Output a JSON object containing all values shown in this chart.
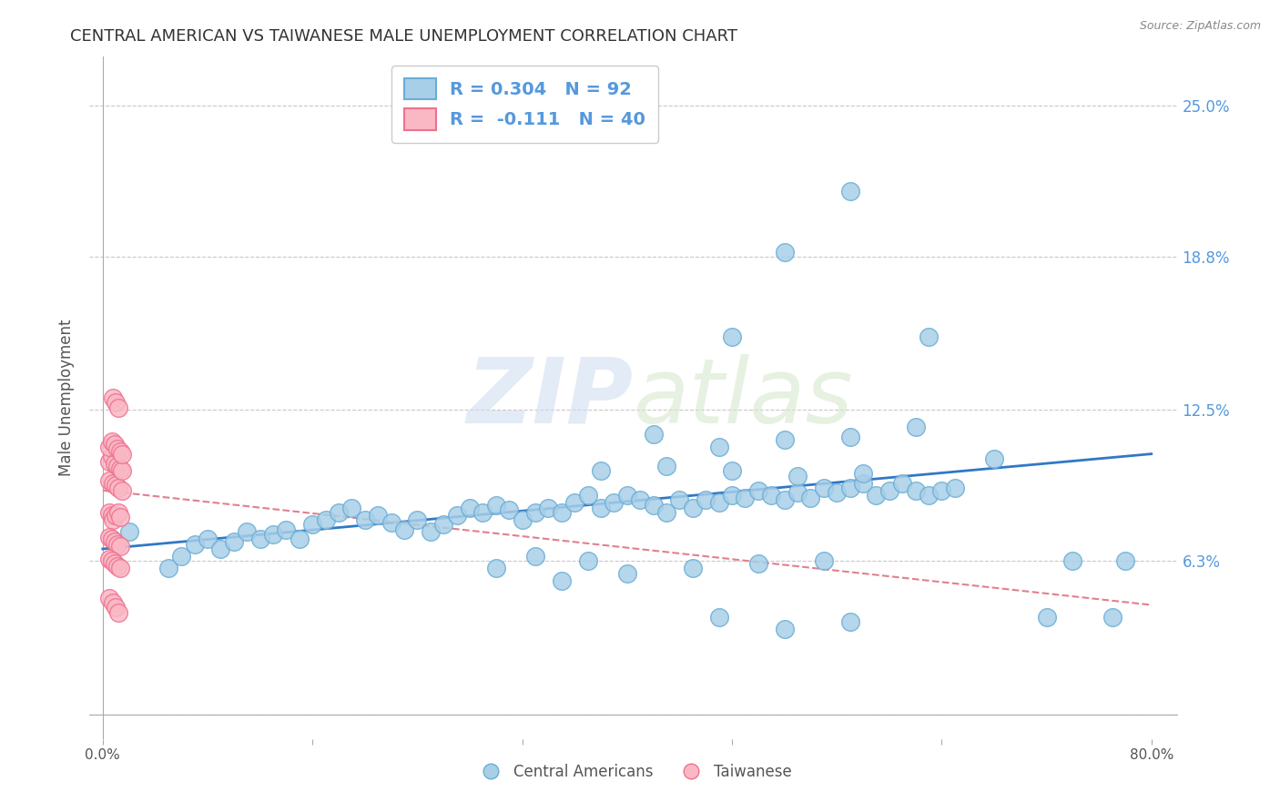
{
  "title": "CENTRAL AMERICAN VS TAIWANESE MALE UNEMPLOYMENT CORRELATION CHART",
  "source_text": "Source: ZipAtlas.com",
  "ylabel": "Male Unemployment",
  "xlim": [
    -0.01,
    0.82
  ],
  "ylim": [
    -0.01,
    0.27
  ],
  "yticks": [
    0.0,
    0.063,
    0.125,
    0.188,
    0.25
  ],
  "ytick_labels": [
    "",
    "6.3%",
    "12.5%",
    "18.8%",
    "25.0%"
  ],
  "xticks": [
    0.0,
    0.16,
    0.32,
    0.48,
    0.64,
    0.8
  ],
  "xtick_labels": [
    "0.0%",
    "",
    "",
    "",
    "",
    "80.0%"
  ],
  "watermark_zip": "ZIP",
  "watermark_atlas": "atlas",
  "legend_blue_label": "R = 0.304   N = 92",
  "legend_pink_label": "R =  -0.111   N = 40",
  "legend_ca_label": "Central Americans",
  "legend_tw_label": "Taiwanese",
  "blue_color": "#a8cfe8",
  "blue_edge_color": "#6aadd5",
  "pink_color": "#f9b8c4",
  "pink_edge_color": "#f07090",
  "trendline_blue_color": "#3178c6",
  "trendline_pink_color": "#e08090",
  "blue_scatter_x": [
    0.02,
    0.05,
    0.06,
    0.07,
    0.08,
    0.09,
    0.1,
    0.11,
    0.12,
    0.13,
    0.14,
    0.15,
    0.16,
    0.17,
    0.18,
    0.19,
    0.2,
    0.21,
    0.22,
    0.23,
    0.24,
    0.25,
    0.26,
    0.27,
    0.28,
    0.29,
    0.3,
    0.31,
    0.32,
    0.33,
    0.34,
    0.35,
    0.36,
    0.37,
    0.38,
    0.39,
    0.4,
    0.41,
    0.42,
    0.43,
    0.44,
    0.45,
    0.46,
    0.47,
    0.48,
    0.49,
    0.5,
    0.51,
    0.52,
    0.53,
    0.54,
    0.55,
    0.56,
    0.57,
    0.58,
    0.59,
    0.6,
    0.61,
    0.62,
    0.63,
    0.64,
    0.65,
    0.3,
    0.35,
    0.4,
    0.45,
    0.5,
    0.55,
    0.42,
    0.47,
    0.52,
    0.57,
    0.62,
    0.38,
    0.43,
    0.48,
    0.53,
    0.58,
    0.33,
    0.37,
    0.47,
    0.52,
    0.57,
    0.74,
    0.78,
    0.48,
    0.52,
    0.57,
    0.63,
    0.68,
    0.72,
    0.77
  ],
  "blue_scatter_y": [
    0.075,
    0.06,
    0.065,
    0.07,
    0.072,
    0.068,
    0.071,
    0.075,
    0.072,
    0.074,
    0.076,
    0.072,
    0.078,
    0.08,
    0.083,
    0.085,
    0.08,
    0.082,
    0.079,
    0.076,
    0.08,
    0.075,
    0.078,
    0.082,
    0.085,
    0.083,
    0.086,
    0.084,
    0.08,
    0.083,
    0.085,
    0.083,
    0.087,
    0.09,
    0.085,
    0.087,
    0.09,
    0.088,
    0.086,
    0.083,
    0.088,
    0.085,
    0.088,
    0.087,
    0.09,
    0.089,
    0.092,
    0.09,
    0.088,
    0.091,
    0.089,
    0.093,
    0.091,
    0.093,
    0.095,
    0.09,
    0.092,
    0.095,
    0.092,
    0.09,
    0.092,
    0.093,
    0.06,
    0.055,
    0.058,
    0.06,
    0.062,
    0.063,
    0.115,
    0.11,
    0.113,
    0.114,
    0.118,
    0.1,
    0.102,
    0.1,
    0.098,
    0.099,
    0.065,
    0.063,
    0.04,
    0.035,
    0.038,
    0.063,
    0.063,
    0.155,
    0.19,
    0.215,
    0.155,
    0.105,
    0.04,
    0.04
  ],
  "pink_scatter_x": [
    0.005,
    0.007,
    0.008,
    0.01,
    0.012,
    0.013,
    0.005,
    0.008,
    0.01,
    0.012,
    0.015,
    0.005,
    0.007,
    0.009,
    0.011,
    0.013,
    0.015,
    0.005,
    0.007,
    0.009,
    0.011,
    0.013,
    0.015,
    0.005,
    0.007,
    0.009,
    0.011,
    0.013,
    0.005,
    0.007,
    0.009,
    0.011,
    0.013,
    0.005,
    0.008,
    0.01,
    0.012,
    0.008,
    0.01,
    0.012
  ],
  "pink_scatter_y": [
    0.083,
    0.082,
    0.08,
    0.082,
    0.083,
    0.081,
    0.096,
    0.095,
    0.094,
    0.093,
    0.092,
    0.104,
    0.106,
    0.103,
    0.102,
    0.101,
    0.1,
    0.11,
    0.112,
    0.111,
    0.109,
    0.108,
    0.107,
    0.073,
    0.072,
    0.071,
    0.07,
    0.069,
    0.064,
    0.063,
    0.062,
    0.061,
    0.06,
    0.048,
    0.046,
    0.044,
    0.042,
    0.13,
    0.128,
    0.126
  ],
  "blue_trend_x": [
    0.0,
    0.8
  ],
  "blue_trend_y": [
    0.068,
    0.107
  ],
  "pink_trend_x": [
    0.0,
    0.8
  ],
  "pink_trend_y": [
    0.092,
    0.045
  ],
  "background_color": "#ffffff",
  "grid_color": "#c8c8c8",
  "title_color": "#333333",
  "axis_label_color": "#555555",
  "tick_label_color": "#555555",
  "right_ytick_color": "#5599dd"
}
